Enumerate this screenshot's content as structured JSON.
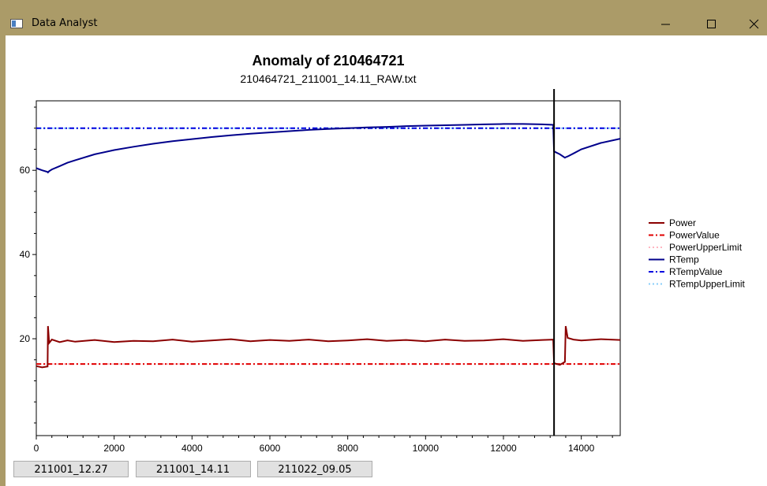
{
  "window_title": "Data Analyst",
  "chart_data": {
    "type": "line",
    "title": "Anomaly of 210464721",
    "subtitle": "210464721_211001_14.11_RAW.txt",
    "x": [
      0,
      150,
      290,
      300,
      330,
      400,
      600,
      800,
      1000,
      1500,
      2000,
      2500,
      3000,
      3500,
      4000,
      4500,
      5000,
      5500,
      6000,
      6500,
      7000,
      7500,
      8000,
      8500,
      9000,
      9500,
      10000,
      10500,
      11000,
      11500,
      12000,
      12500,
      13000,
      13280,
      13300,
      13450,
      13580,
      13600,
      13650,
      13800,
      14000,
      14500,
      15000
    ],
    "series": [
      {
        "name": "Power",
        "color": "#8b0000",
        "style": "solid",
        "values": [
          13.5,
          13.2,
          13.4,
          23,
          19,
          19.8,
          19.2,
          19.6,
          19.3,
          19.7,
          19.2,
          19.5,
          19.4,
          19.8,
          19.3,
          19.6,
          19.9,
          19.4,
          19.7,
          19.5,
          19.8,
          19.4,
          19.6,
          19.9,
          19.5,
          19.7,
          19.4,
          19.8,
          19.5,
          19.6,
          19.9,
          19.5,
          19.7,
          19.8,
          14.2,
          13.8,
          14.5,
          23,
          20.2,
          19.8,
          19.6,
          19.9,
          19.7
        ]
      },
      {
        "name": "PowerValue",
        "color": "#e00000",
        "style": "dashdot",
        "x": [
          0,
          15000
        ],
        "values": [
          14,
          14
        ]
      },
      {
        "name": "PowerUpperLimit",
        "color": "#ffb6c1",
        "style": "dot",
        "x": [
          0,
          15000
        ],
        "values": [
          14,
          14
        ]
      },
      {
        "name": "RTemp",
        "color": "#00008b",
        "style": "solid",
        "values": [
          60.5,
          60,
          59.6,
          59.5,
          59.8,
          60.2,
          61,
          61.8,
          62.4,
          63.8,
          64.8,
          65.6,
          66.3,
          66.9,
          67.4,
          67.9,
          68.3,
          68.7,
          69,
          69.3,
          69.6,
          69.8,
          70,
          70.2,
          70.3,
          70.5,
          70.6,
          70.7,
          70.8,
          70.9,
          71,
          71,
          70.9,
          70.8,
          64.5,
          63.8,
          63,
          63.1,
          63.3,
          64,
          65,
          66.5,
          67.5
        ]
      },
      {
        "name": "RTempValue",
        "color": "#0000e0",
        "style": "dashdot",
        "x": [
          0,
          15000
        ],
        "values": [
          70,
          70
        ]
      },
      {
        "name": "RTempUpperLimit",
        "color": "#87cefa",
        "style": "dot",
        "x": [
          0,
          15000
        ],
        "values": [
          70,
          70
        ]
      }
    ],
    "marker_x": 13300,
    "xlim": [
      0,
      15000
    ],
    "xticks": [
      0,
      2000,
      4000,
      6000,
      8000,
      10000,
      12000,
      14000
    ],
    "xminorticks": [
      400,
      800,
      1200,
      1600,
      2400,
      2800,
      3200,
      3600,
      4400,
      4800,
      5200,
      5600,
      6400,
      6800,
      7200,
      7600,
      8400,
      8800,
      9200,
      9600,
      10400,
      10800,
      11200,
      11600,
      12400,
      12800,
      13200,
      13600,
      14400,
      14800
    ],
    "ylim": [
      -3,
      76.5
    ],
    "yticks": [
      20,
      40,
      60
    ],
    "yminorticks": [
      0,
      5,
      10,
      15,
      25,
      30,
      35,
      45,
      50,
      55,
      65,
      70,
      75
    ],
    "legend": "right"
  },
  "buttons": [
    "211001_12.27",
    "211001_14.11",
    "211022_09.05"
  ]
}
